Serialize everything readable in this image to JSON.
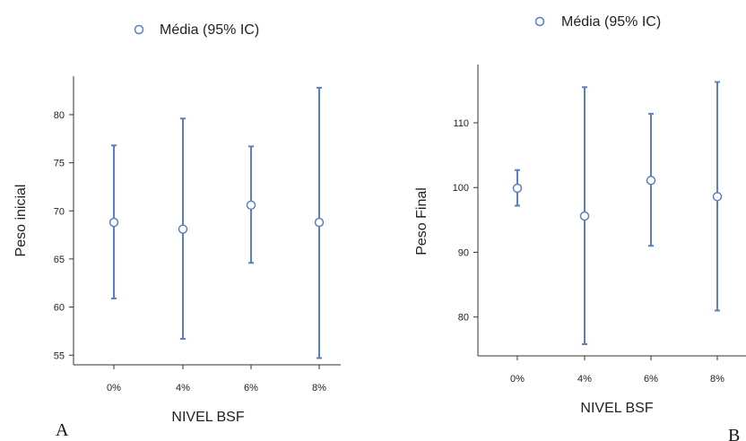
{
  "chart_data": [
    {
      "type": "errorbar",
      "panel_label": "A",
      "legend": "Média (95% IC)",
      "xlabel": "NIVEL BSF",
      "ylabel": "Peso inicial",
      "categories": [
        "0%",
        "4%",
        "6%",
        "8%"
      ],
      "mean": [
        68.8,
        68.1,
        70.6,
        68.8
      ],
      "lower": [
        60.9,
        56.7,
        64.6,
        54.7
      ],
      "upper": [
        76.8,
        79.6,
        76.7,
        82.8
      ],
      "yticks": [
        55,
        60,
        65,
        70,
        75,
        80
      ],
      "ylim": [
        54,
        84
      ],
      "color": "#5b7fc7"
    },
    {
      "type": "errorbar",
      "panel_label": "B",
      "legend": "Média (95% IC)",
      "xlabel": "NIVEL BSF",
      "ylabel": "Peso Final",
      "categories": [
        "0%",
        "4%",
        "6%",
        "8%"
      ],
      "mean": [
        99.9,
        95.6,
        101.1,
        98.6
      ],
      "lower": [
        97.2,
        75.8,
        91.0,
        81.0
      ],
      "upper": [
        102.7,
        115.5,
        111.4,
        116.3
      ],
      "yticks": [
        80,
        90,
        100,
        110
      ],
      "ylim": [
        74,
        119
      ],
      "color": "#5b7fc7"
    }
  ]
}
